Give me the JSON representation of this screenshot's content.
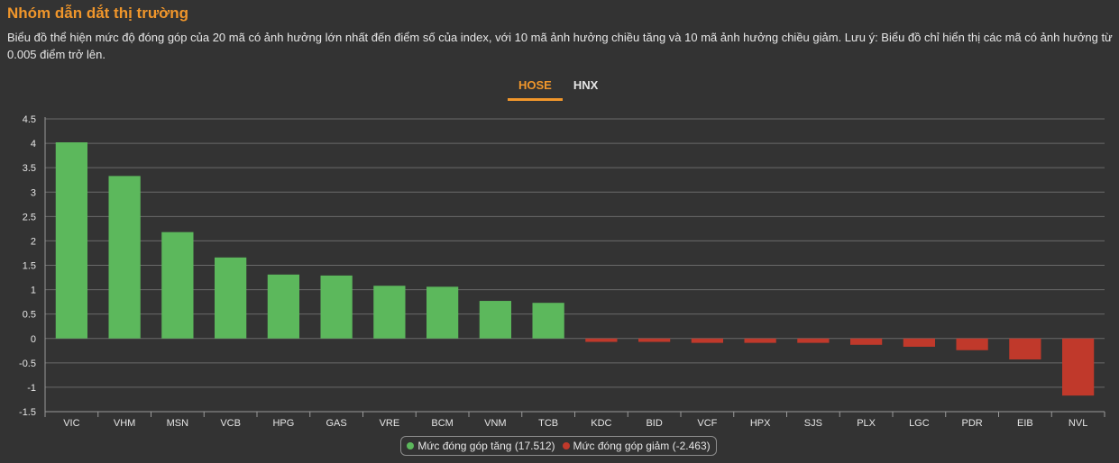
{
  "header": {
    "title": "Nhóm dẫn dắt thị trường",
    "description": "Biểu đồ thể hiện mức độ đóng góp của 20 mã có ảnh hưởng lớn nhất đến điểm số của index, với 10 mã ảnh hưởng chiều tăng và 10 mã ảnh hưởng chiều giảm. Lưu ý: Biểu đồ chỉ hiển thị các mã có ảnh hưởng từ 0.005 điểm trở lên."
  },
  "tabs": [
    {
      "label": "HOSE",
      "active": true
    },
    {
      "label": "HNX",
      "active": false
    }
  ],
  "colors": {
    "positive": "#5cb85c",
    "negative": "#c0392b",
    "accent": "#f0962b",
    "background": "#333333"
  },
  "legend": {
    "positive_label": "Mức đóng góp tăng (17.512)",
    "negative_label": "Mức đóng góp giảm (-2.463)"
  },
  "chart_data": {
    "type": "bar",
    "categories": [
      "VIC",
      "VHM",
      "MSN",
      "VCB",
      "HPG",
      "GAS",
      "VRE",
      "BCM",
      "VNM",
      "TCB",
      "KDC",
      "BID",
      "VCF",
      "HPX",
      "SJS",
      "PLX",
      "LGC",
      "PDR",
      "EIB",
      "NVL"
    ],
    "values": [
      4.02,
      3.33,
      2.18,
      1.66,
      1.31,
      1.29,
      1.08,
      1.06,
      0.77,
      0.73,
      -0.07,
      -0.07,
      -0.09,
      -0.09,
      -0.09,
      -0.13,
      -0.17,
      -0.24,
      -0.43,
      -1.17
    ],
    "ylim": [
      -1.5,
      4.5
    ],
    "yticks": [
      "4.5",
      "4",
      "3.5",
      "3",
      "2.5",
      "2",
      "1.5",
      "1",
      "0.5",
      "0",
      "-0.5",
      "-1",
      "-1.5"
    ],
    "ytick_values": [
      4.5,
      4,
      3.5,
      3,
      2.5,
      2,
      1.5,
      1,
      0.5,
      0,
      -0.5,
      -1,
      -1.5
    ],
    "grid": true,
    "legend_position": "bottom-center"
  }
}
